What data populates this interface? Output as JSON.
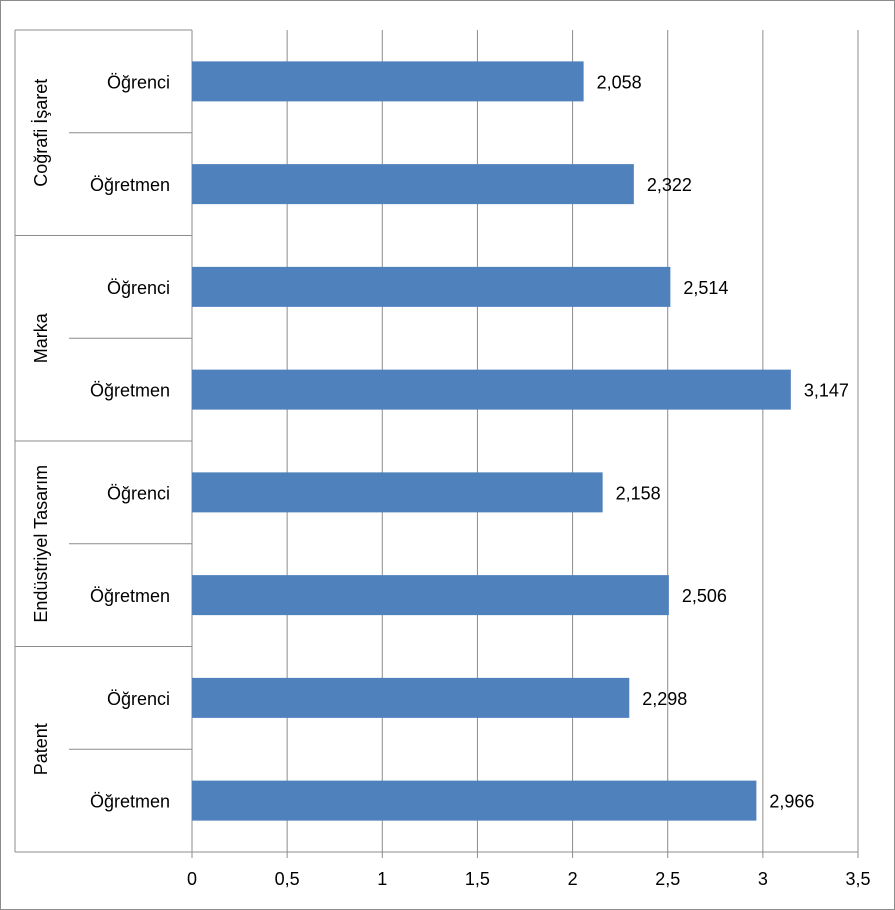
{
  "chart_data": {
    "type": "bar",
    "orientation": "horizontal",
    "groups": [
      {
        "name": "Coğrafi İşaret",
        "items": [
          {
            "category": "Öğrenci",
            "value": 2.058,
            "label": "2,058"
          },
          {
            "category": "Öğretmen",
            "value": 2.322,
            "label": "2,322"
          }
        ]
      },
      {
        "name": "Marka",
        "items": [
          {
            "category": "Öğrenci",
            "value": 2.514,
            "label": "2,514"
          },
          {
            "category": "Öğretmen",
            "value": 3.147,
            "label": "3,147"
          }
        ]
      },
      {
        "name": "Endüstriyel Tasarım",
        "items": [
          {
            "category": "Öğrenci",
            "value": 2.158,
            "label": "2,158"
          },
          {
            "category": "Öğretmen",
            "value": 2.506,
            "label": "2,506"
          }
        ]
      },
      {
        "name": "Patent",
        "items": [
          {
            "category": "Öğrenci",
            "value": 2.298,
            "label": "2,298"
          },
          {
            "category": "Öğretmen",
            "value": 2.966,
            "label": "2,966"
          }
        ]
      }
    ],
    "xlim": [
      0,
      3.5
    ],
    "xticks": [
      0,
      0.5,
      1,
      1.5,
      2,
      2.5,
      3,
      3.5
    ],
    "xtick_labels": [
      "0",
      "0,5",
      "1",
      "1,5",
      "2",
      "2,5",
      "3",
      "3,5"
    ],
    "grid": true,
    "bar_color": "#4f81bd",
    "title": "",
    "xlabel": "",
    "ylabel": ""
  }
}
